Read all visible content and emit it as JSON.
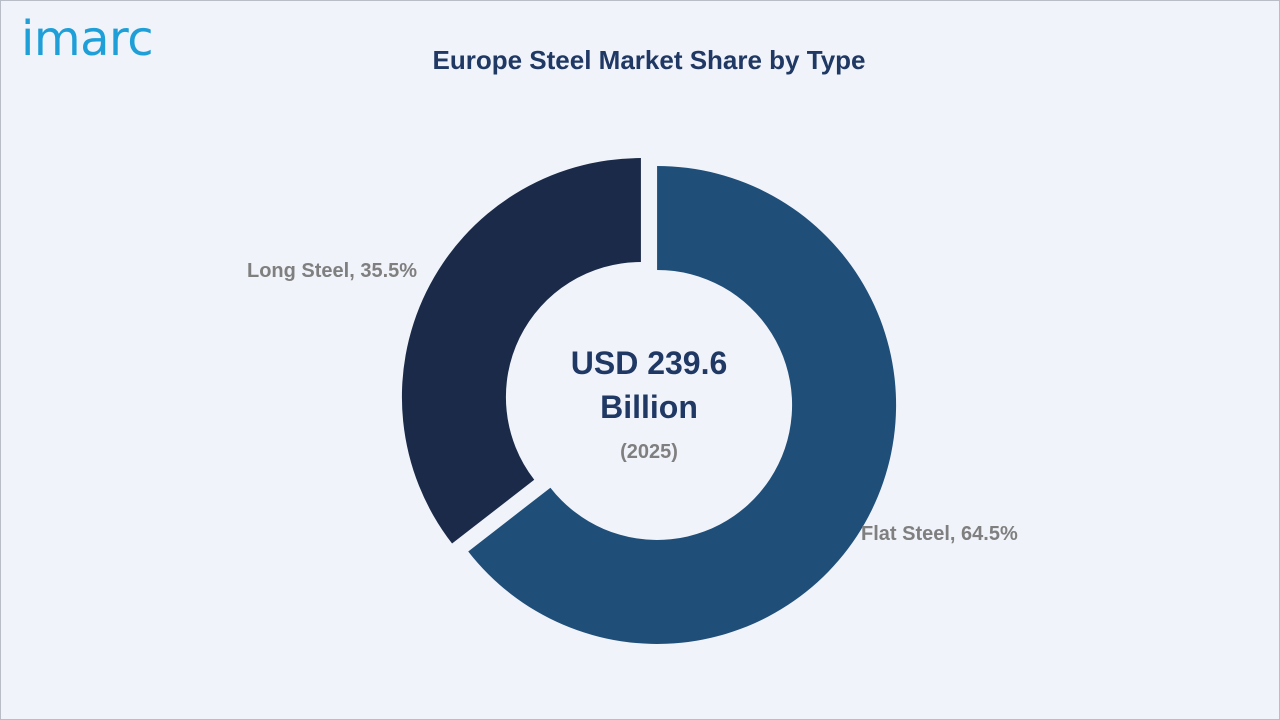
{
  "brand": {
    "logo_text": "imarc",
    "logo_color": "#1e9fd8"
  },
  "chart_data": {
    "type": "pie",
    "title": "Europe Steel Market Share by Type",
    "donut": true,
    "center_label": {
      "value_line1": "USD 239.6",
      "value_line2": "Billion",
      "year": "(2025)"
    },
    "slices": [
      {
        "name": "Flat Steel",
        "value": 64.5,
        "label": "Flat Steel, 64.5%",
        "color": "#1f4e79"
      },
      {
        "name": "Long Steel",
        "value": 35.5,
        "label": "Long Steel, 35.5%",
        "color": "#1a2a48"
      }
    ]
  },
  "colors": {
    "background": "#f0f3f9",
    "title": "#1f3864",
    "label": "#7f7f7f"
  }
}
